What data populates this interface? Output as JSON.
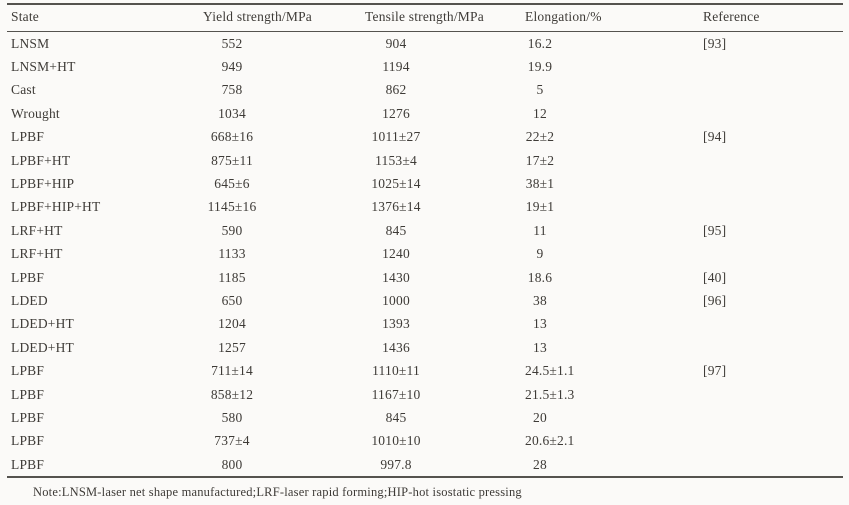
{
  "table": {
    "columns": [
      {
        "key": "state",
        "label": "State"
      },
      {
        "key": "yield",
        "label": "Yield strength/MPa"
      },
      {
        "key": "tensile",
        "label": "Tensile strength/MPa"
      },
      {
        "key": "elongation",
        "label": "Elongation/%"
      },
      {
        "key": "reference",
        "label": "Reference"
      }
    ],
    "rows": [
      {
        "state": "LNSM",
        "yield": "552",
        "tensile": "904",
        "elongation": "16.2",
        "reference": "[93]"
      },
      {
        "state": "LNSM+HT",
        "yield": "949",
        "tensile": "1194",
        "elongation": "19.9",
        "reference": ""
      },
      {
        "state": "Cast",
        "yield": "758",
        "tensile": "862",
        "elongation": "5",
        "reference": ""
      },
      {
        "state": "Wrought",
        "yield": "1034",
        "tensile": "1276",
        "elongation": "12",
        "reference": ""
      },
      {
        "state": "LPBF",
        "yield": "668±16",
        "tensile": "1011±27",
        "elongation": "22±2",
        "reference": "[94]"
      },
      {
        "state": "LPBF+HT",
        "yield": "875±11",
        "tensile": "1153±4",
        "elongation": "17±2",
        "reference": ""
      },
      {
        "state": "LPBF+HIP",
        "yield": "645±6",
        "tensile": "1025±14",
        "elongation": "38±1",
        "reference": ""
      },
      {
        "state": "LPBF+HIP+HT",
        "yield": "1145±16",
        "tensile": "1376±14",
        "elongation": "19±1",
        "reference": ""
      },
      {
        "state": "LRF+HT",
        "yield": "590",
        "tensile": "845",
        "elongation": "11",
        "reference": "[95]"
      },
      {
        "state": "LRF+HT",
        "yield": "1133",
        "tensile": "1240",
        "elongation": "9",
        "reference": ""
      },
      {
        "state": "LPBF",
        "yield": "1185",
        "tensile": "1430",
        "elongation": "18.6",
        "reference": "[40]"
      },
      {
        "state": "LDED",
        "yield": "650",
        "tensile": "1000",
        "elongation": "38",
        "reference": "[96]"
      },
      {
        "state": "LDED+HT",
        "yield": "1204",
        "tensile": "1393",
        "elongation": "13",
        "reference": ""
      },
      {
        "state": "LDED+HT",
        "yield": "1257",
        "tensile": "1436",
        "elongation": "13",
        "reference": ""
      },
      {
        "state": "LPBF",
        "yield": "711±14",
        "tensile": "1110±11",
        "elongation": "24.5±1.1",
        "reference": "[97]"
      },
      {
        "state": "LPBF",
        "yield": "858±12",
        "tensile": "1167±10",
        "elongation": "21.5±1.3",
        "reference": ""
      },
      {
        "state": "LPBF",
        "yield": "580",
        "tensile": "845",
        "elongation": "20",
        "reference": ""
      },
      {
        "state": "LPBF",
        "yield": "737±4",
        "tensile": "1010±10",
        "elongation": "20.6±2.1",
        "reference": ""
      },
      {
        "state": "LPBF",
        "yield": "800",
        "tensile": "997.8",
        "elongation": "28",
        "reference": ""
      }
    ],
    "note": "Note:LNSM-laser net shape manufactured;LRF-laser rapid forming;HIP-hot isostatic pressing"
  }
}
